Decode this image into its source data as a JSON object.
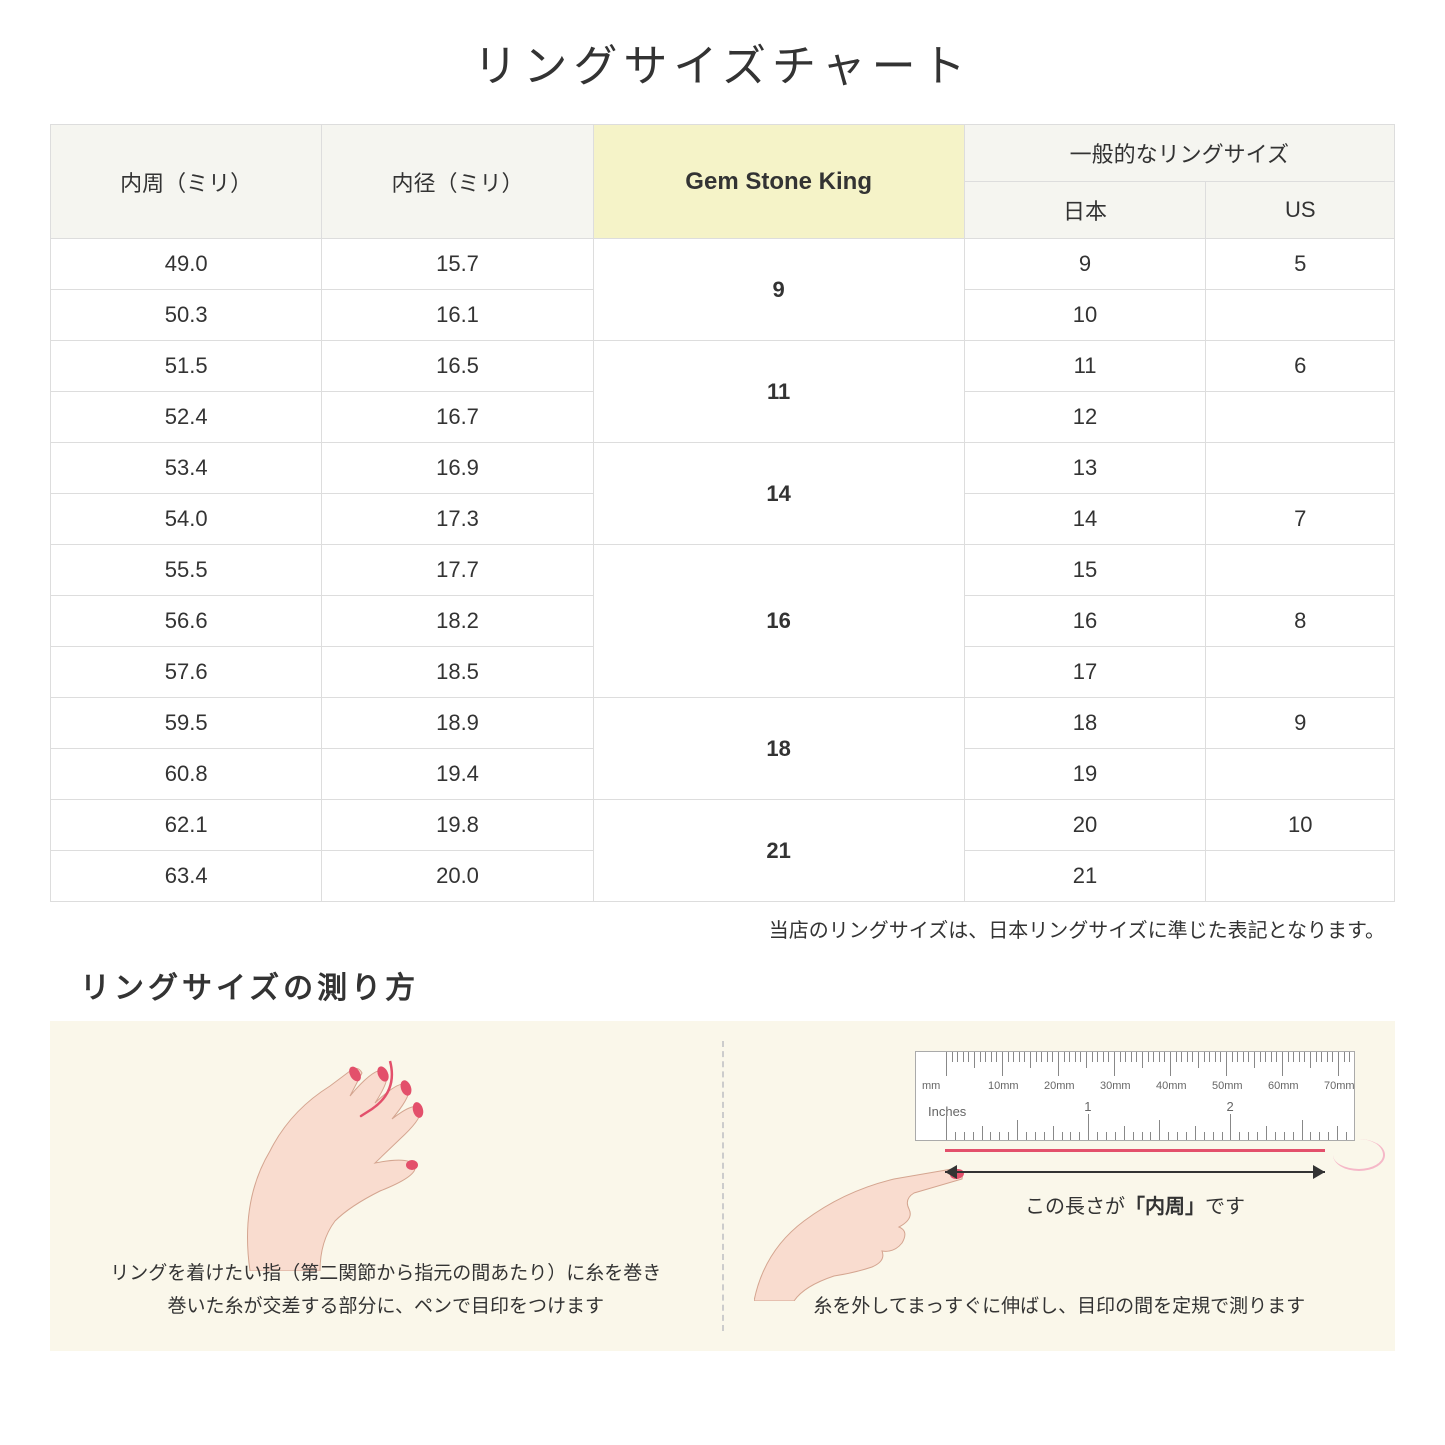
{
  "title": "リングサイズチャート",
  "headers": {
    "circumference": "内周（ミリ）",
    "diameter": "内径（ミリ）",
    "gem": "Gem Stone King",
    "common": "一般的なリングサイズ",
    "japan": "日本",
    "us": "US"
  },
  "rows": [
    {
      "circ": "49.0",
      "diam": "15.7",
      "gem": "9",
      "gem_span": 2,
      "jp": "9",
      "us": "5"
    },
    {
      "circ": "50.3",
      "diam": "16.1",
      "jp": "10",
      "us": ""
    },
    {
      "circ": "51.5",
      "diam": "16.5",
      "gem": "11",
      "gem_span": 2,
      "jp": "11",
      "us": "6"
    },
    {
      "circ": "52.4",
      "diam": "16.7",
      "jp": "12",
      "us": ""
    },
    {
      "circ": "53.4",
      "diam": "16.9",
      "gem": "14",
      "gem_span": 2,
      "jp": "13",
      "us": ""
    },
    {
      "circ": "54.0",
      "diam": "17.3",
      "jp": "14",
      "us": "7"
    },
    {
      "circ": "55.5",
      "diam": "17.7",
      "gem": "16",
      "gem_span": 3,
      "jp": "15",
      "us": ""
    },
    {
      "circ": "56.6",
      "diam": "18.2",
      "jp": "16",
      "us": "8"
    },
    {
      "circ": "57.6",
      "diam": "18.5",
      "jp": "17",
      "us": ""
    },
    {
      "circ": "59.5",
      "diam": "18.9",
      "gem": "18",
      "gem_span": 2,
      "jp": "18",
      "us": "9"
    },
    {
      "circ": "60.8",
      "diam": "19.4",
      "jp": "19",
      "us": ""
    },
    {
      "circ": "62.1",
      "diam": "19.8",
      "gem": "21",
      "gem_span": 2,
      "jp": "20",
      "us": "10"
    },
    {
      "circ": "63.4",
      "diam": "20.0",
      "jp": "21",
      "us": ""
    }
  ],
  "note": "当店のリングサイズは、日本リングサイズに準じた表記となります。",
  "subtitle": "リングサイズの測り方",
  "step1": "リングを着けたい指（第二関節から指元の間あたり）に糸を巻き\n巻いた糸が交差する部分に、ペンで目印をつけます",
  "step2": "糸を外してまっすぐに伸ばし、目印の間を定規で測ります",
  "measure_label_pre": "この長さが",
  "measure_label_bold": "「内周」",
  "measure_label_post": "です",
  "ruler": {
    "mm_labels": [
      "10mm",
      "20mm",
      "30mm",
      "40mm",
      "50mm",
      "60mm",
      "70mm"
    ],
    "mm_unit": "mm",
    "inches_label": "Inches",
    "inch_labels": [
      "1",
      "2"
    ]
  },
  "colors": {
    "highlight_bg": "#f5f3c8",
    "header_bg": "#f5f5f0",
    "panel_bg": "#faf7ea",
    "skin": "#f9dccf",
    "nail": "#e3506b",
    "thread": "#e3506b"
  }
}
